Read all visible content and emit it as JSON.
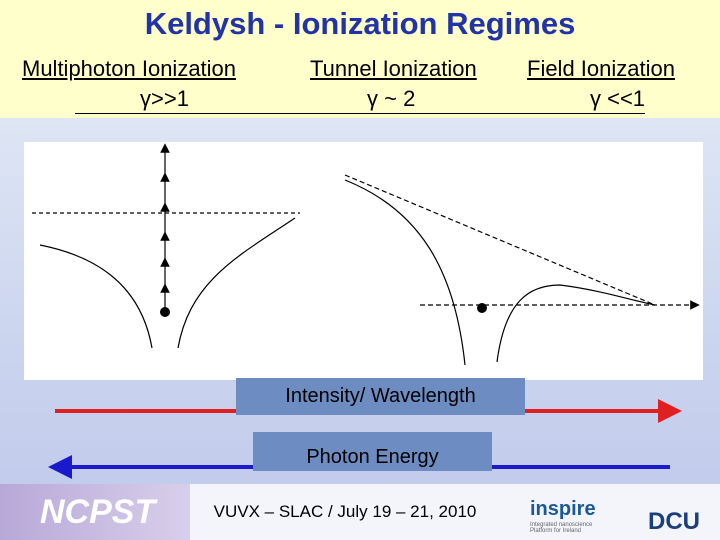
{
  "header": {
    "title": "Keldysh - Ionization Regimes",
    "columns": [
      {
        "name": "Multiphoton Ionization",
        "gamma": "γ>>1"
      },
      {
        "name": "Tunnel Ionization",
        "gamma": "γ ~ 2"
      },
      {
        "name": "Field Ionization",
        "gamma": "γ <<1"
      }
    ]
  },
  "arrows": [
    "Intensity/ Wavelength",
    "Photon Energy"
  ],
  "footer": {
    "logos": [
      "NCPST",
      "inspire",
      "DCU"
    ],
    "logo_caption": "Integrated nanoscience Platform for Ireland",
    "conference": "VUVX – SLAC / July 19 – 21, 2010"
  }
}
